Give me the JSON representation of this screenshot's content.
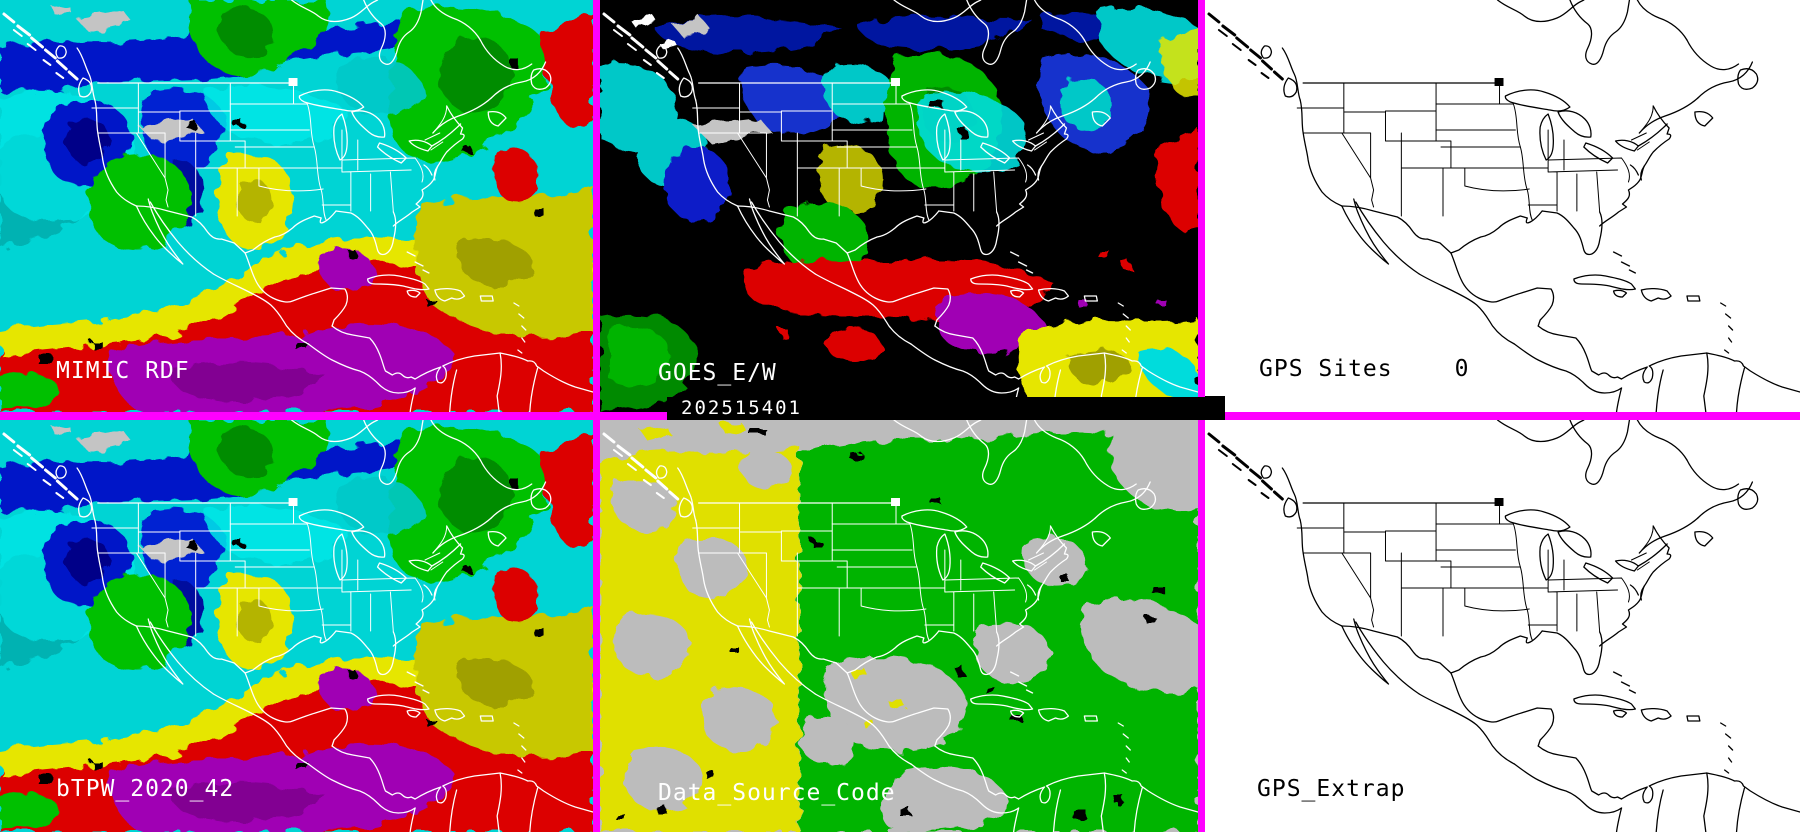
{
  "panels": {
    "mimic_rdf": {
      "label": "MIMIC RDF"
    },
    "goes_ew": {
      "label": "GOES_E/W"
    },
    "gps_sites": {
      "label": "GPS Sites",
      "count": "0"
    },
    "btpw": {
      "label": "bTPW_2020_42"
    },
    "data_source": {
      "label": "Data_Source_Code"
    },
    "gps_extrap": {
      "label": "GPS_Extrap"
    }
  },
  "timestamp": "202515401",
  "colors": {
    "panel_border": "#ff00ff",
    "timestamp_bar_bg": "#000000",
    "timestamp_text": "#ffffff",
    "label_on_imagery": "#ffffff",
    "label_on_map": "#000000",
    "map_panel_background": "#ffffff",
    "datasource_gray": "#bcbcbc",
    "datasource_yellow": "#e0e000",
    "datasource_green": "#00b400",
    "tpw_cyan": "#00d4d4",
    "tpw_green": "#00c000",
    "tpw_yellow": "#e6e600",
    "tpw_red": "#dc0000",
    "tpw_purple": "#a000b4",
    "tpw_blue": "#0016c8"
  }
}
